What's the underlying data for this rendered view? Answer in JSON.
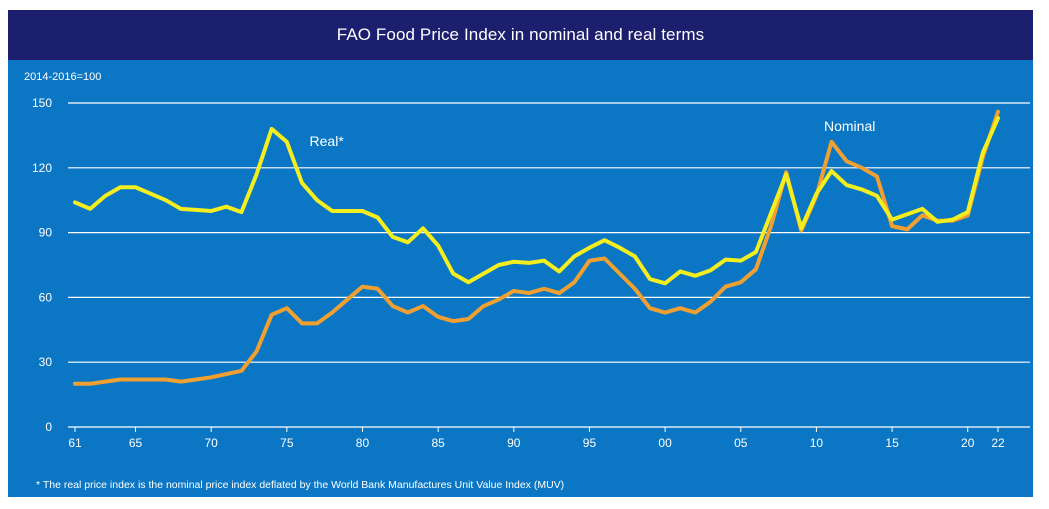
{
  "chart_data": {
    "type": "line",
    "title": "FAO Food Price Index in nominal and real terms",
    "unit_label": "2014-2016=100",
    "footnote": "* The real price index is the nominal price index deflated by the World Bank Manufactures Unit Value Index (MUV)",
    "xlim": [
      1961,
      2022
    ],
    "ylim": [
      0,
      150
    ],
    "y_ticks": [
      0,
      30,
      60,
      90,
      120,
      150
    ],
    "x_ticks": [
      {
        "year": 1961,
        "label": "61"
      },
      {
        "year": 1965,
        "label": "65"
      },
      {
        "year": 1970,
        "label": "70"
      },
      {
        "year": 1975,
        "label": "75"
      },
      {
        "year": 1980,
        "label": "80"
      },
      {
        "year": 1985,
        "label": "85"
      },
      {
        "year": 1990,
        "label": "90"
      },
      {
        "year": 1995,
        "label": "95"
      },
      {
        "year": 2000,
        "label": "00"
      },
      {
        "year": 2005,
        "label": "05"
      },
      {
        "year": 2010,
        "label": "10"
      },
      {
        "year": 2015,
        "label": "15"
      },
      {
        "year": 2020,
        "label": "20"
      },
      {
        "year": 2022,
        "label": "22"
      }
    ],
    "grid": true,
    "x": [
      1961,
      1962,
      1963,
      1964,
      1965,
      1966,
      1967,
      1968,
      1969,
      1970,
      1971,
      1972,
      1973,
      1974,
      1975,
      1976,
      1977,
      1978,
      1979,
      1980,
      1981,
      1982,
      1983,
      1984,
      1985,
      1986,
      1987,
      1988,
      1989,
      1990,
      1991,
      1992,
      1993,
      1994,
      1995,
      1996,
      1997,
      1998,
      1999,
      2000,
      2001,
      2002,
      2003,
      2004,
      2005,
      2006,
      2007,
      2008,
      2009,
      2010,
      2011,
      2012,
      2013,
      2014,
      2015,
      2016,
      2017,
      2018,
      2019,
      2020,
      2021,
      2022
    ],
    "series": [
      {
        "name": "Real*",
        "color": "#f5ee1e",
        "label_at": {
          "x": 1976.5,
          "y": 130
        },
        "values": [
          104,
          101,
          107,
          111,
          111,
          108,
          105,
          101,
          100.5,
          100,
          102,
          99.5,
          117,
          138,
          132,
          113,
          105,
          100,
          100,
          100,
          97,
          88,
          85.5,
          92,
          84,
          71,
          67,
          71,
          75,
          76.5,
          76,
          77,
          72,
          79,
          83,
          86.5,
          83,
          79,
          68.5,
          66.5,
          72,
          70,
          72.5,
          77.5,
          77,
          81,
          99,
          117,
          92,
          108,
          118.5,
          112,
          110,
          107,
          96,
          98.5,
          101,
          95,
          96,
          99.5,
          127,
          143
        ]
      },
      {
        "name": "Nominal",
        "color": "#f0a030",
        "label_at": {
          "x": 2010.5,
          "y": 137
        },
        "values": [
          20,
          20,
          21,
          22,
          22,
          22,
          22,
          21,
          22,
          23,
          24.5,
          26,
          35,
          52,
          55,
          48,
          48,
          53,
          59,
          65,
          64,
          56,
          53,
          56,
          51,
          49,
          50,
          56,
          59,
          63,
          62,
          64,
          62,
          67,
          77,
          78,
          71,
          64,
          55,
          53,
          55,
          53,
          58,
          65,
          67,
          73,
          93,
          118,
          91,
          107,
          132,
          123,
          120,
          116,
          93,
          91.5,
          98,
          95.5,
          95.5,
          98,
          125,
          146
        ]
      }
    ]
  }
}
